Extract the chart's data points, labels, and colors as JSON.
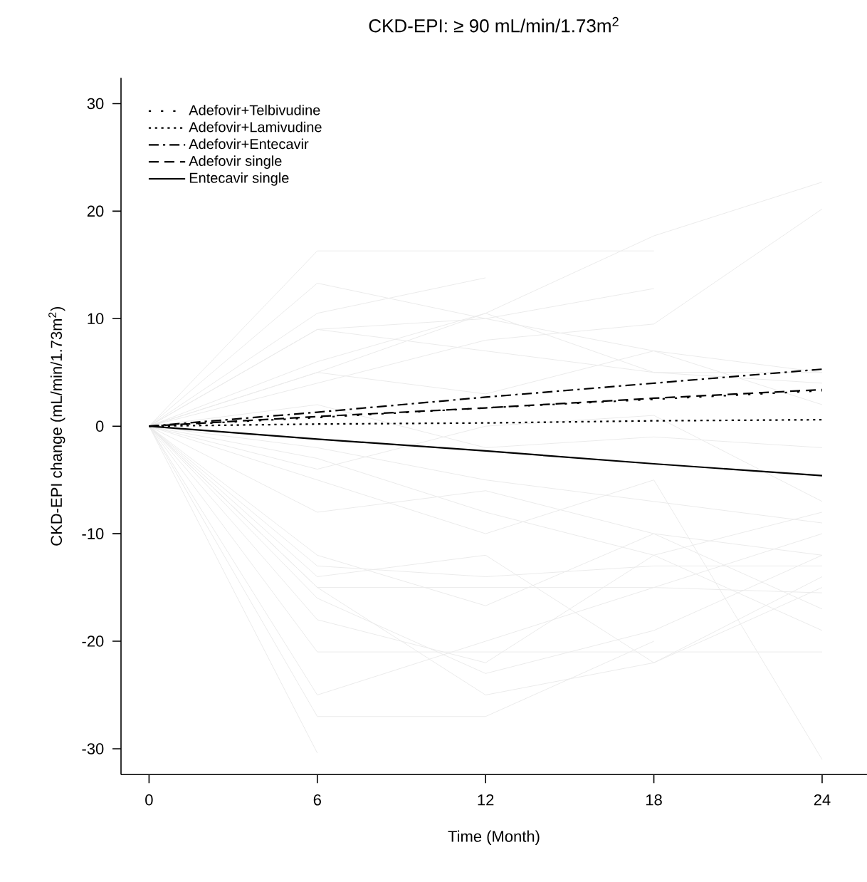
{
  "chart_data": {
    "type": "line",
    "title": "CKD-EPI: ≥ 90 mL/min/1.73m$^{2}$",
    "xlabel": "Time (Month)",
    "ylabel": "CKD-EPI change (mL/min/1.73m$^{2}$)",
    "x": [
      0,
      6,
      12,
      18,
      24
    ],
    "xlim": [
      -1,
      25.6
    ],
    "ylim": [
      -32.4,
      32.4
    ],
    "xticks": [
      0,
      6,
      12,
      18,
      24
    ],
    "yticks": [
      -30,
      -20,
      -10,
      0,
      10,
      20,
      30
    ],
    "grid": false,
    "legend": "top left",
    "marker": "none",
    "series": [
      {
        "color": "#ebebeb",
        "values": [
          0,
          16.3,
          16.3,
          16.3,
          null
        ]
      },
      {
        "color": "#ebebeb",
        "values": [
          0,
          10.5,
          13.8,
          null,
          null
        ]
      },
      {
        "color": "#ebebeb",
        "values": [
          0,
          13.3,
          10,
          7,
          5
        ]
      },
      {
        "color": "#ebebeb",
        "values": [
          0,
          5,
          10.5,
          17.7,
          22.7
        ]
      },
      {
        "color": "#ebebeb",
        "values": [
          0,
          4,
          8,
          9.5,
          20.2
        ]
      },
      {
        "color": "#ebebeb",
        "values": [
          0,
          9,
          10,
          12.8,
          null
        ]
      },
      {
        "color": "#ebebeb",
        "values": [
          0,
          -21,
          -21,
          -21,
          -21
        ]
      },
      {
        "color": "#ebebeb",
        "values": [
          0,
          -27,
          -27,
          -20,
          null
        ]
      },
      {
        "color": "#ebebeb",
        "values": [
          0,
          -30.4,
          null,
          null,
          null
        ]
      },
      {
        "color": "#ebebeb",
        "values": [
          0,
          -15,
          -15,
          -15,
          -15.5
        ]
      },
      {
        "color": "#ebebeb",
        "values": [
          0,
          -13,
          -14,
          -13,
          -13
        ]
      },
      {
        "color": "#ebebeb",
        "values": [
          0,
          -25,
          -20,
          -15,
          -10
        ]
      },
      {
        "color": "#ebebeb",
        "values": [
          0,
          -3,
          -8,
          -12,
          -19
        ]
      },
      {
        "color": "#ebebeb",
        "values": [
          0,
          -5,
          -10,
          -5,
          -31
        ]
      },
      {
        "color": "#ebebeb",
        "values": [
          0,
          -18,
          -22,
          -12,
          -8
        ]
      },
      {
        "color": "#ebebeb",
        "values": [
          0,
          -2,
          -5,
          -7,
          -9
        ]
      },
      {
        "color": "#ebebeb",
        "values": [
          0,
          5,
          3,
          7,
          2
        ]
      },
      {
        "color": "#ebebeb",
        "values": [
          0,
          6,
          10.5,
          5,
          5
        ]
      },
      {
        "color": "#ebebeb",
        "values": [
          0,
          -12,
          -16.7,
          -10,
          -17
        ]
      },
      {
        "color": "#ebebeb",
        "values": [
          0,
          -15,
          -25,
          -22,
          -14
        ]
      },
      {
        "color": "#ebebeb",
        "values": [
          0,
          2,
          -2,
          -1,
          -2
        ]
      },
      {
        "color": "#ebebeb",
        "values": [
          0,
          -8,
          -6,
          -10,
          -12
        ]
      },
      {
        "color": "#ebebeb",
        "values": [
          0,
          -14,
          -12,
          -22,
          -15
        ]
      },
      {
        "color": "#ebebeb",
        "values": [
          0,
          -4,
          0,
          1,
          -7
        ]
      },
      {
        "color": "#ebebeb",
        "values": [
          0,
          9,
          7,
          5,
          4
        ]
      },
      {
        "color": "#ebebeb",
        "values": [
          0,
          -16,
          -23,
          -19,
          -12
        ]
      },
      {
        "name": "Adefovir+Telbivudine",
        "color": "#000000",
        "line_style": "loosely dotted",
        "values": [
          0,
          0.8,
          1.7,
          2.5,
          3.3
        ]
      },
      {
        "name": "Adefovir+Lamivudine",
        "color": "#000000",
        "line_style": "dotted",
        "values": [
          0,
          0.2,
          0.3,
          0.5,
          0.6
        ]
      },
      {
        "name": "Adefovir+Entecavir",
        "color": "#000000",
        "line_style": "dashdot",
        "values": [
          0,
          1.3,
          2.7,
          4.0,
          5.3
        ]
      },
      {
        "name": "Adefovir single",
        "color": "#000000",
        "line_style": "dashed",
        "values": [
          0,
          0.9,
          1.7,
          2.6,
          3.4
        ]
      },
      {
        "name": "Entecavir single",
        "color": "#000000",
        "line_style": "solid",
        "values": [
          0,
          -1.2,
          -2.3,
          -3.5,
          -4.6
        ]
      }
    ]
  }
}
